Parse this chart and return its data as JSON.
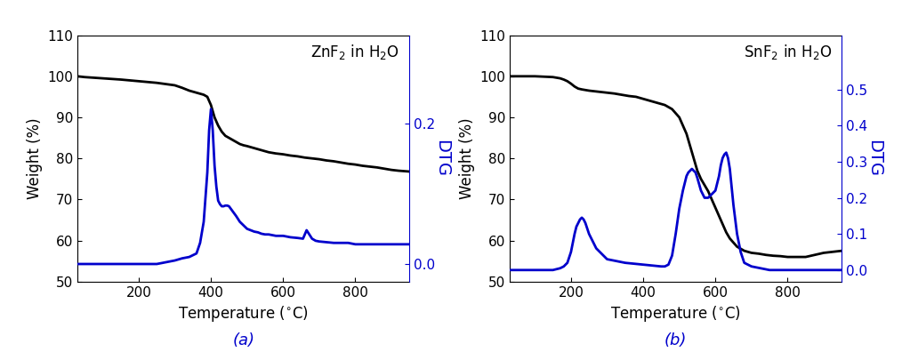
{
  "panel_a": {
    "title": "ZnF$_2$ in H$_2$O",
    "xlabel": "Temperature (°C)",
    "ylabel_left": "Weight (%)",
    "ylabel_right": "DTG",
    "label": "(a)",
    "xlim": [
      30,
      950
    ],
    "ylim_left": [
      50,
      110
    ],
    "ylim_right": [
      -0.025,
      0.325
    ],
    "yticks_left": [
      50,
      60,
      70,
      80,
      90,
      100,
      110
    ],
    "yticks_right": [
      0.0,
      0.2
    ],
    "ytick_labels_right": [
      "0.0",
      "0.2"
    ],
    "xticks": [
      200,
      400,
      600,
      800
    ],
    "weight_x": [
      30,
      50,
      100,
      150,
      200,
      250,
      300,
      320,
      340,
      360,
      380,
      390,
      400,
      410,
      420,
      430,
      440,
      450,
      460,
      470,
      480,
      490,
      500,
      520,
      540,
      560,
      580,
      600,
      620,
      640,
      660,
      680,
      700,
      720,
      740,
      760,
      780,
      800,
      820,
      840,
      860,
      880,
      900,
      920,
      950
    ],
    "weight_y": [
      100,
      99.8,
      99.5,
      99.2,
      98.8,
      98.4,
      97.8,
      97.2,
      96.5,
      96.0,
      95.5,
      95.0,
      93.0,
      90.0,
      88.0,
      86.5,
      85.5,
      85.0,
      84.5,
      84.0,
      83.5,
      83.2,
      83.0,
      82.5,
      82.0,
      81.5,
      81.2,
      81.0,
      80.7,
      80.5,
      80.2,
      80.0,
      79.8,
      79.5,
      79.3,
      79.0,
      78.7,
      78.5,
      78.2,
      78.0,
      77.8,
      77.5,
      77.2,
      77.0,
      76.8
    ],
    "dtg_x": [
      30,
      50,
      100,
      150,
      200,
      250,
      300,
      320,
      340,
      360,
      370,
      380,
      390,
      395,
      400,
      405,
      410,
      415,
      420,
      425,
      430,
      435,
      440,
      445,
      450,
      460,
      470,
      480,
      490,
      500,
      510,
      520,
      530,
      540,
      550,
      560,
      580,
      600,
      620,
      640,
      655,
      660,
      665,
      670,
      675,
      680,
      690,
      700,
      720,
      740,
      760,
      780,
      800,
      850,
      900,
      950
    ],
    "dtg_y": [
      0.0,
      0.0,
      0.0,
      0.0,
      0.0,
      0.0,
      0.005,
      0.008,
      0.01,
      0.015,
      0.03,
      0.06,
      0.13,
      0.19,
      0.22,
      0.19,
      0.14,
      0.11,
      0.09,
      0.085,
      0.082,
      0.082,
      0.083,
      0.083,
      0.082,
      0.075,
      0.068,
      0.06,
      0.055,
      0.05,
      0.048,
      0.046,
      0.045,
      0.043,
      0.042,
      0.042,
      0.04,
      0.04,
      0.038,
      0.037,
      0.036,
      0.042,
      0.048,
      0.044,
      0.04,
      0.036,
      0.033,
      0.032,
      0.031,
      0.03,
      0.03,
      0.03,
      0.028,
      0.028,
      0.028,
      0.028
    ]
  },
  "panel_b": {
    "title": "SnF$_2$ in H$_2$O",
    "xlabel": "Temperature (°C)",
    "ylabel_left": "Weight (%)",
    "ylabel_right": "DTG",
    "label": "(b)",
    "xlim": [
      30,
      950
    ],
    "ylim_left": [
      50,
      110
    ],
    "ylim_right": [
      -0.032,
      0.65
    ],
    "yticks_left": [
      50,
      60,
      70,
      80,
      90,
      100,
      110
    ],
    "yticks_right": [
      0.0,
      0.1,
      0.2,
      0.3,
      0.4,
      0.5
    ],
    "ytick_labels_right": [
      "0.0",
      "0.1",
      "0.2",
      "0.3",
      "0.4",
      "0.5"
    ],
    "xticks": [
      200,
      400,
      600,
      800
    ],
    "weight_x": [
      30,
      50,
      100,
      150,
      170,
      180,
      190,
      200,
      210,
      220,
      230,
      250,
      280,
      300,
      320,
      340,
      360,
      380,
      400,
      420,
      440,
      460,
      480,
      500,
      510,
      520,
      530,
      540,
      550,
      560,
      570,
      580,
      590,
      600,
      610,
      620,
      630,
      640,
      650,
      660,
      680,
      700,
      720,
      740,
      760,
      780,
      800,
      850,
      900,
      950
    ],
    "weight_y": [
      100,
      100,
      100,
      99.8,
      99.5,
      99.2,
      98.8,
      98.2,
      97.5,
      97.0,
      96.8,
      96.5,
      96.2,
      96.0,
      95.8,
      95.5,
      95.2,
      95.0,
      94.5,
      94.0,
      93.5,
      93.0,
      92.0,
      90.0,
      88.0,
      86.0,
      83.0,
      80.0,
      77.0,
      75.0,
      73.5,
      72.0,
      70.0,
      68.0,
      66.0,
      64.0,
      62.0,
      60.5,
      59.5,
      58.5,
      57.5,
      57.0,
      56.8,
      56.5,
      56.3,
      56.2,
      56.0,
      56.0,
      57.0,
      57.5
    ],
    "dtg_x": [
      30,
      50,
      100,
      150,
      170,
      180,
      190,
      200,
      210,
      215,
      220,
      225,
      230,
      235,
      240,
      250,
      270,
      300,
      350,
      400,
      430,
      450,
      460,
      470,
      480,
      490,
      500,
      510,
      515,
      520,
      525,
      530,
      535,
      540,
      545,
      550,
      560,
      570,
      580,
      590,
      600,
      610,
      615,
      620,
      625,
      630,
      635,
      640,
      650,
      660,
      670,
      680,
      700,
      750,
      800,
      850,
      900,
      950
    ],
    "dtg_y": [
      0.0,
      0.0,
      0.0,
      0.0,
      0.005,
      0.01,
      0.02,
      0.05,
      0.1,
      0.12,
      0.13,
      0.14,
      0.145,
      0.14,
      0.13,
      0.1,
      0.06,
      0.03,
      0.02,
      0.015,
      0.012,
      0.01,
      0.01,
      0.015,
      0.04,
      0.1,
      0.17,
      0.22,
      0.24,
      0.26,
      0.27,
      0.275,
      0.28,
      0.275,
      0.27,
      0.255,
      0.22,
      0.2,
      0.2,
      0.21,
      0.22,
      0.26,
      0.29,
      0.31,
      0.32,
      0.325,
      0.31,
      0.28,
      0.18,
      0.1,
      0.05,
      0.02,
      0.01,
      0.0,
      0.0,
      0.0,
      0.0,
      0.0
    ]
  },
  "line_color_weight": "#000000",
  "line_color_dtg": "#0000cc",
  "line_width": 2.0,
  "background_color": "#ffffff",
  "title_fontsize": 12,
  "label_fontsize": 12,
  "tick_fontsize": 11,
  "sublabel_fontsize": 13
}
